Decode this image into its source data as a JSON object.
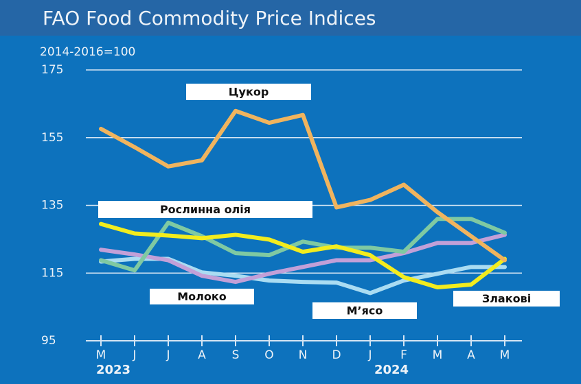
{
  "chart_data": {
    "type": "line",
    "title": "FAO Food Commodity Price Indices",
    "subtitle": "2014-2016=100",
    "categories": [
      "M",
      "J",
      "J",
      "A",
      "S",
      "O",
      "N",
      "D",
      "J",
      "F",
      "M",
      "A",
      "M"
    ],
    "years": [
      "2023",
      "2024"
    ],
    "ylim": [
      95,
      175
    ],
    "yticks": [
      95,
      115,
      135,
      155,
      175
    ],
    "grid": true,
    "series": [
      {
        "name": "Цукор",
        "color": "#f0b45e",
        "values": [
          157.6,
          152.2,
          146.5,
          148.3,
          162.9,
          159.4,
          161.7,
          134.4,
          136.6,
          141.1,
          133.0,
          125.9,
          118.8
        ]
      },
      {
        "name": "Рослинна олія",
        "color": "#f2ec1e",
        "values": [
          129.5,
          126.7,
          126.1,
          125.3,
          126.3,
          124.9,
          121.3,
          122.9,
          120.3,
          113.8,
          110.8,
          111.6,
          119.2
        ]
      },
      {
        "name": "Злакові",
        "color": "#7fc9a2",
        "values": [
          118.8,
          115.8,
          129.9,
          125.9,
          120.9,
          120.3,
          124.3,
          122.5,
          122.5,
          121.3,
          131.0,
          131.0,
          126.9
        ]
      },
      {
        "name": "Молоко",
        "color": "#c2a0d8",
        "values": [
          121.9,
          120.5,
          118.8,
          114.2,
          112.4,
          114.8,
          116.8,
          118.8,
          118.8,
          120.9,
          123.9,
          123.9,
          126.3
        ]
      },
      {
        "name": "М’ясо",
        "color": "#aadcf2",
        "values": [
          118.4,
          119.2,
          119.2,
          115.2,
          114.2,
          112.8,
          112.4,
          112.2,
          109.1,
          112.8,
          114.8,
          116.8,
          116.8
        ]
      }
    ]
  }
}
